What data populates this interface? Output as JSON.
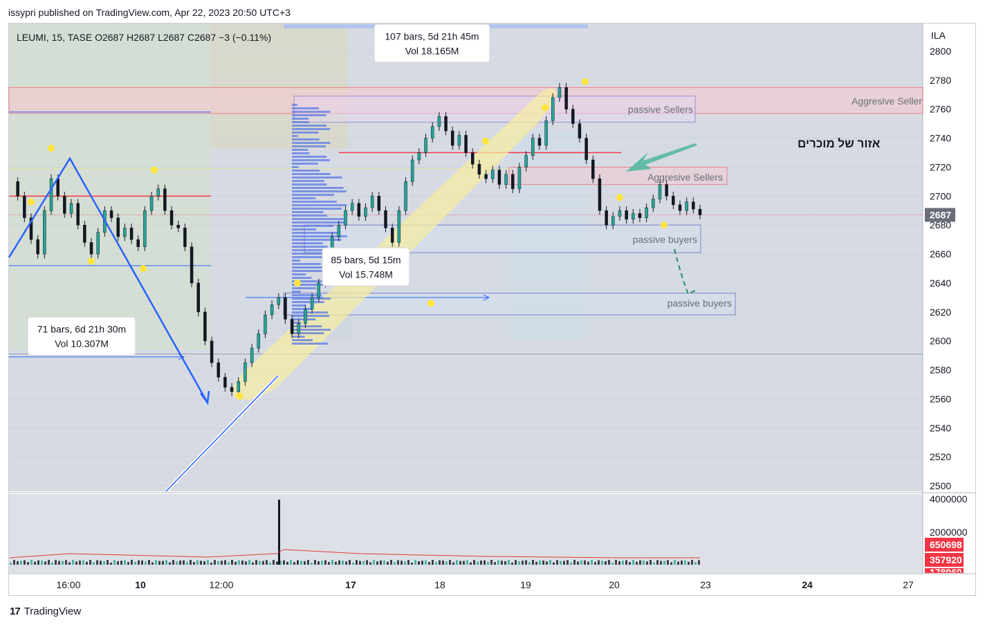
{
  "caption": "issypri published on TradingView.com, Apr 22, 2023 20:50 UTC+3",
  "footer_brand": "TradingView",
  "logo_icon": "tradingview-logo-icon",
  "colors": {
    "background": "#d6dbe3",
    "up": "#26a69a",
    "down": "#131722",
    "blue_line": "#2962ff",
    "red_line": "#f23645",
    "yellow_channel": "#f7eea0",
    "volume_ma": "#e53935"
  },
  "chart_data": {
    "type": "candlestick",
    "title": "LEUMI, 15, TASE",
    "ohlc_header": {
      "O": "O2687",
      "H": "H2687",
      "L": "L2687",
      "C": "C2687",
      "change": "−3 (−0.11%)"
    },
    "symbol": "LEUMI",
    "interval": "15",
    "exchange": "TASE",
    "currency": "ILA",
    "ylim": [
      2495,
      2810
    ],
    "y_ticks": [
      "2800",
      "2780",
      "2760",
      "2740",
      "2720",
      "2700",
      "2680",
      "2660",
      "2640",
      "2620",
      "2600",
      "2580",
      "2560",
      "2540",
      "2520",
      "2500"
    ],
    "last_price": "2687",
    "x_ticks": [
      {
        "label": "16:00",
        "bold": false
      },
      {
        "label": "10",
        "bold": true
      },
      {
        "label": "12:00",
        "bold": false
      },
      {
        "label": "17",
        "bold": true
      },
      {
        "label": "18",
        "bold": false
      },
      {
        "label": "19",
        "bold": false
      },
      {
        "label": "20",
        "bold": false
      },
      {
        "label": "23",
        "bold": false
      },
      {
        "label": "24",
        "bold": true
      },
      {
        "label": "27",
        "bold": false
      }
    ],
    "price_path": [
      2710,
      2700,
      2685,
      2670,
      2660,
      2690,
      2712,
      2700,
      2688,
      2695,
      2680,
      2668,
      2660,
      2675,
      2690,
      2685,
      2672,
      2678,
      2670,
      2665,
      2690,
      2700,
      2705,
      2690,
      2680,
      2678,
      2665,
      2640,
      2620,
      2600,
      2585,
      2575,
      2568,
      2565,
      2572,
      2585,
      2595,
      2605,
      2618,
      2625,
      2630,
      2615,
      2605,
      2612,
      2622,
      2630,
      2640,
      2655,
      2672,
      2680,
      2690,
      2695,
      2686,
      2692,
      2700,
      2690,
      2678,
      2668,
      2690,
      2710,
      2725,
      2730,
      2740,
      2748,
      2755,
      2745,
      2735,
      2742,
      2730,
      2722,
      2715,
      2712,
      2718,
      2708,
      2715,
      2705,
      2720,
      2728,
      2740,
      2735,
      2752,
      2768,
      2775,
      2760,
      2750,
      2740,
      2725,
      2712,
      2690,
      2680,
      2686,
      2690,
      2684,
      2688,
      2685,
      2692,
      2698,
      2708,
      2700,
      2694,
      2690,
      2696,
      2691,
      2687
    ],
    "swing_point_prices": [
      2733,
      2718,
      2696,
      2655,
      2650,
      2640,
      2562,
      2626,
      2779,
      2738,
      2761,
      2699,
      2680
    ],
    "volume": {
      "axis_ticks": [
        "4000000",
        "2000000"
      ],
      "labels": [
        "650698",
        "357920",
        "178960"
      ]
    },
    "annotations": [
      {
        "text": "107 bars, 5d 21h 45m",
        "line2": "Vol 18.165M"
      },
      {
        "text": "71 bars, 6d 21h 30m",
        "line2": "Vol 10.307M"
      },
      {
        "text": "85 bars, 5d 15m",
        "line2": "Vol 15.748M"
      },
      {
        "text": "passive Sellers"
      },
      {
        "text": "Aggresive Seller"
      },
      {
        "text": "Aggresive Sellers"
      },
      {
        "text": "passive buyers"
      },
      {
        "text": "passive buyers"
      },
      {
        "text": "אזור של מוכרים"
      }
    ],
    "zones": {
      "aggressive_sellers_top": [
        2757,
        2775
      ],
      "passive_sellers": [
        2751,
        2769
      ],
      "aggressive_sellers_mid": [
        2708,
        2720
      ],
      "passive_buyers_mid": [
        2661,
        2680
      ],
      "passive_buyers_low": [
        2618,
        2633
      ]
    },
    "levels": {
      "red_main": 2700,
      "red_upper": 2730,
      "blue_1": 2758,
      "blue_2": 2652,
      "grey_1": 2591
    },
    "grid": true
  }
}
